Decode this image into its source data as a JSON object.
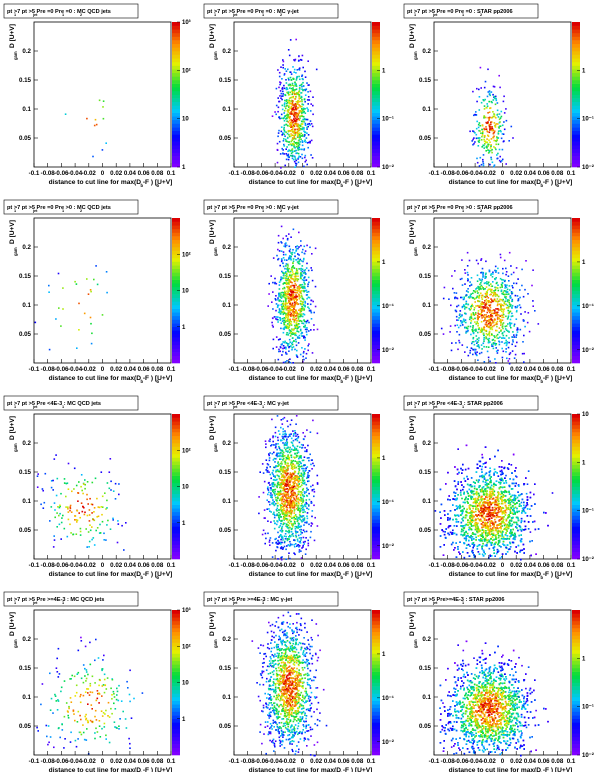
{
  "chart_data": [
    {
      "type": "heatmap",
      "title": "pt >7  pt    >5 Pre =0 Pre =0 : MC QCD jets",
      "title_sub": [
        "1",
        "jet",
        "1",
        "2"
      ],
      "xlabel": "distance to cut line for max(D   -F   ) [U+V]",
      "xlabel_sub": [
        "b",
        "b"
      ],
      "ylabel": "D    [U+V]",
      "ylabel_sub": "gam",
      "xlim": [
        -0.1,
        0.1
      ],
      "ylim": [
        0,
        0.25
      ],
      "xticks": [
        "-0.1",
        "-0.08",
        "-0.06",
        "-0.04",
        "-0.02",
        "0",
        "0.02",
        "0.04",
        "0.06",
        "0.08",
        "0.1"
      ],
      "yticks": [
        "0.05",
        "0.1",
        "0.15",
        "0.2"
      ],
      "zscale": "log",
      "zlim": [
        1,
        1000
      ],
      "zticks": [
        "1",
        "10",
        "10²",
        "10³"
      ],
      "density": 0.05,
      "center": [
        -0.02,
        0.09
      ],
      "spread": [
        0.02,
        0.035
      ],
      "points": 12
    },
    {
      "type": "heatmap",
      "title": "pt >7  pt    >5 Pre =0 Pre =0 : MC γ-jet",
      "title_sub": [
        "1",
        "jet",
        "1",
        "2"
      ],
      "xlabel": "distance to cut line for max(D   -F   ) [U+V]",
      "xlabel_sub": [
        "b",
        "b"
      ],
      "ylabel": "D    [U+V]",
      "ylabel_sub": "gam",
      "xlim": [
        -0.1,
        0.1
      ],
      "ylim": [
        0,
        0.25
      ],
      "xticks": [
        "-0.1",
        "-0.08",
        "-0.06",
        "-0.04",
        "-0.02",
        "0",
        "0.02",
        "0.04",
        "0.06",
        "0.08",
        "0.1"
      ],
      "yticks": [
        "0.05",
        "0.1",
        "0.15",
        "0.2"
      ],
      "zscale": "log",
      "zlim": [
        0.01,
        10
      ],
      "zticks": [
        "10⁻²",
        "10⁻¹",
        "1"
      ],
      "center": [
        -0.013,
        0.09
      ],
      "spread": [
        0.011,
        0.045
      ],
      "points": 700
    },
    {
      "type": "heatmap",
      "title": "pt >7  pt    >5 Pre =0 Pre =0 : STAR pp2006",
      "title_sub": [
        "1",
        "jet",
        "1",
        "2"
      ],
      "xlabel": "distance to cut line for max(D   -F   ) [U+V]",
      "xlabel_sub": [
        "b",
        "b"
      ],
      "ylabel": "D    [U+V]",
      "ylabel_sub": "gam",
      "xlim": [
        -0.1,
        0.1
      ],
      "ylim": [
        0,
        0.25
      ],
      "xticks": [
        "-0.1",
        "-0.08",
        "-0.06",
        "-0.04",
        "-0.02",
        "0",
        "0.02",
        "0.04",
        "0.06",
        "0.08",
        "0.1"
      ],
      "yticks": [
        "0.05",
        "0.1",
        "0.15",
        "0.2"
      ],
      "zscale": "log",
      "zlim": [
        0.01,
        10
      ],
      "zticks": [
        "10⁻²",
        "10⁻¹",
        "1"
      ],
      "center": [
        -0.02,
        0.07
      ],
      "spread": [
        0.012,
        0.035
      ],
      "points": 280
    },
    {
      "type": "heatmap",
      "title": "pt >7  pt    >5 Pre =0 Pre >0 : MC QCD jets",
      "title_sub": [
        "1",
        "jet",
        "1",
        "2"
      ],
      "xlabel": "distance to cut line for max(D   -F   ) [U+V]",
      "xlabel_sub": [
        "b",
        "b"
      ],
      "ylabel": "D    [U+V]",
      "ylabel_sub": "gam",
      "xlim": [
        -0.1,
        0.1
      ],
      "ylim": [
        0,
        0.25
      ],
      "xticks": [
        "-0.1",
        "-0.08",
        "-0.06",
        "-0.04",
        "-0.02",
        "0",
        "0.02",
        "0.04",
        "0.06",
        "0.08",
        "0.1"
      ],
      "yticks": [
        "0.05",
        "0.1",
        "0.15",
        "0.2"
      ],
      "zscale": "log",
      "zlim": [
        0.1,
        1000
      ],
      "zticks": [
        "1",
        "10",
        "10²"
      ],
      "center": [
        -0.03,
        0.1
      ],
      "spread": [
        0.03,
        0.04
      ],
      "points": 30
    },
    {
      "type": "heatmap",
      "title": "pt >7  pt    >5 Pre =0 Pre >0 : MC γ-jet",
      "title_sub": [
        "1",
        "jet",
        "1",
        "2"
      ],
      "xlabel": "distance to cut line for max(D   -F   ) [U+V]",
      "xlabel_sub": [
        "b",
        "b"
      ],
      "ylabel": "D    [U+V]",
      "ylabel_sub": "gam",
      "xlim": [
        -0.1,
        0.1
      ],
      "ylim": [
        0,
        0.25
      ],
      "xticks": [
        "-0.1",
        "-0.08",
        "-0.06",
        "-0.04",
        "-0.02",
        "0",
        "0.02",
        "0.04",
        "0.06",
        "0.08",
        "0.1"
      ],
      "yticks": [
        "0.05",
        "0.1",
        "0.15",
        "0.2"
      ],
      "zscale": "log",
      "zlim": [
        0.005,
        10
      ],
      "zticks": [
        "10⁻²",
        "10⁻¹",
        "1"
      ],
      "center": [
        -0.015,
        0.11
      ],
      "spread": [
        0.013,
        0.05
      ],
      "points": 900
    },
    {
      "type": "heatmap",
      "title": "pt >7  pt    >5 Pre =0 Pre >0 : STAR pp2006",
      "title_sub": [
        "1",
        "jet",
        "1",
        "2"
      ],
      "xlabel": "distance to cut line for max(D   -F   ) [U+V]",
      "xlabel_sub": [
        "b",
        "b"
      ],
      "ylabel": "D    [U+V]",
      "ylabel_sub": "gam",
      "xlim": [
        -0.1,
        0.1
      ],
      "ylim": [
        0,
        0.25
      ],
      "xticks": [
        "-0.1",
        "-0.08",
        "-0.06",
        "-0.04",
        "-0.02",
        "0",
        "0.02",
        "0.04",
        "0.06",
        "0.08",
        "0.1"
      ],
      "yticks": [
        "0.05",
        "0.1",
        "0.15",
        "0.2"
      ],
      "zscale": "log",
      "zlim": [
        0.005,
        10
      ],
      "zticks": [
        "10⁻²",
        "10⁻¹",
        "1"
      ],
      "center": [
        -0.02,
        0.09
      ],
      "spread": [
        0.025,
        0.04
      ],
      "points": 900
    },
    {
      "type": "heatmap",
      "title": "pt >7  pt    >5 Pre <4E-3 : MC QCD jets",
      "title_sub": [
        "1",
        "jet",
        "1"
      ],
      "xlabel": "distance to cut line for max(D   -F   ) [U+V]",
      "xlabel_sub": [
        "b",
        "b"
      ],
      "ylabel": "D    [U+V]",
      "ylabel_sub": "gam",
      "xlim": [
        -0.1,
        0.1
      ],
      "ylim": [
        0,
        0.25
      ],
      "xticks": [
        "-0.1",
        "-0.08",
        "-0.06",
        "-0.04",
        "-0.02",
        "0",
        "0.02",
        "0.04",
        "0.06",
        "0.08",
        "0.1"
      ],
      "yticks": [
        "0.05",
        "0.1",
        "0.15",
        "0.2"
      ],
      "zscale": "log",
      "zlim": [
        0.1,
        1000
      ],
      "zticks": [
        "1",
        "10",
        "10²"
      ],
      "center": [
        -0.03,
        0.09
      ],
      "spread": [
        0.03,
        0.04
      ],
      "points": 180
    },
    {
      "type": "heatmap",
      "title": "pt >7  pt    >5 Pre <4E-3 : MC  γ-jet",
      "title_sub": [
        "1",
        "jet",
        "1"
      ],
      "xlabel": "distance to cut line for max(D   -F   ) [U+V]",
      "xlabel_sub": [
        "b",
        "b"
      ],
      "ylabel": "D    [U+V]",
      "ylabel_sub": "gam",
      "xlim": [
        -0.1,
        0.1
      ],
      "ylim": [
        0,
        0.25
      ],
      "xticks": [
        "-0.1",
        "-0.08",
        "-0.06",
        "-0.04",
        "-0.02",
        "0",
        "0.02",
        "0.04",
        "0.06",
        "0.08",
        "0.1"
      ],
      "yticks": [
        "0.05",
        "0.1",
        "0.15",
        "0.2"
      ],
      "zscale": "log",
      "zlim": [
        0.005,
        10
      ],
      "zticks": [
        "10⁻²",
        "10⁻¹",
        "1"
      ],
      "center": [
        -0.02,
        0.12
      ],
      "spread": [
        0.016,
        0.055
      ],
      "points": 1300
    },
    {
      "type": "heatmap",
      "title": "pt >7  pt    >5 Pre <4E-3 : STAR pp2006",
      "title_sub": [
        "1",
        "jet",
        "1"
      ],
      "xlabel": "distance to cut line for max(D   -F   ) [U+V]",
      "xlabel_sub": [
        "b",
        "b"
      ],
      "ylabel": "D    [U+V]",
      "ylabel_sub": "gam",
      "xlim": [
        -0.1,
        0.1
      ],
      "ylim": [
        0,
        0.25
      ],
      "xticks": [
        "-0.1",
        "-0.08",
        "-0.06",
        "-0.04",
        "-0.02",
        "0",
        "0.02",
        "0.04",
        "0.06",
        "0.08",
        "0.1"
      ],
      "yticks": [
        "0.05",
        "0.1",
        "0.15",
        "0.2"
      ],
      "zscale": "log",
      "zlim": [
        0.01,
        10
      ],
      "zticks": [
        "10⁻²",
        "10⁻¹",
        "1",
        "10"
      ],
      "center": [
        -0.02,
        0.08
      ],
      "spread": [
        0.03,
        0.04
      ],
      "points": 2600
    },
    {
      "type": "heatmap",
      "title": "pt >7  pt    >5 Pre >=4E-3 : MC QCD jets",
      "title_sub": [
        "1",
        "jet",
        "1"
      ],
      "xlabel": "distance to cut line for max(D   -F   ) [U+V]",
      "xlabel_sub": [
        "b",
        "b"
      ],
      "ylabel": "D    [U+V]",
      "ylabel_sub": "gam",
      "xlim": [
        -0.1,
        0.1
      ],
      "ylim": [
        0,
        0.25
      ],
      "xticks": [
        "-0.1",
        "-0.08",
        "-0.06",
        "-0.04",
        "-0.02",
        "0",
        "0.02",
        "0.04",
        "0.06",
        "0.08",
        "0.1"
      ],
      "yticks": [
        "0.05",
        "0.1",
        "0.15",
        "0.2"
      ],
      "zscale": "log",
      "zlim": [
        0.1,
        1000
      ],
      "zticks": [
        "1",
        "10",
        "10²",
        "10³"
      ],
      "center": [
        -0.02,
        0.09
      ],
      "spread": [
        0.035,
        0.045
      ],
      "points": 220
    },
    {
      "type": "heatmap",
      "title": "pt >7  pt    >5 Pre >=4E-3 : MC γ-jet",
      "title_sub": [
        "1",
        "jet",
        "1"
      ],
      "xlabel": "distance to cut line for max(D   -F   ) [U+V]",
      "xlabel_sub": [
        "b",
        "b"
      ],
      "ylabel": "D    [U+V]",
      "ylabel_sub": "gam",
      "xlim": [
        -0.1,
        0.1
      ],
      "ylim": [
        0,
        0.25
      ],
      "xticks": [
        "-0.1",
        "-0.08",
        "-0.06",
        "-0.04",
        "-0.02",
        "0",
        "0.02",
        "0.04",
        "0.06",
        "0.08",
        "0.1"
      ],
      "yticks": [
        "0.05",
        "0.1",
        "0.15",
        "0.2"
      ],
      "zscale": "log",
      "zlim": [
        0.005,
        10
      ],
      "zticks": [
        "10⁻²",
        "10⁻¹",
        "1"
      ],
      "center": [
        -0.02,
        0.12
      ],
      "spread": [
        0.018,
        0.055
      ],
      "points": 1300
    },
    {
      "type": "heatmap",
      "title": "pt >7  pt    >5 Pre>=4E-3 : STAR pp2006",
      "title_sub": [
        "1",
        "jet",
        "1"
      ],
      "xlabel": "distance to cut line for max(D   -F   ) [U+V]",
      "xlabel_sub": [
        "b",
        "b"
      ],
      "ylabel": "D    [U+V]",
      "ylabel_sub": "gam",
      "xlim": [
        -0.1,
        0.1
      ],
      "ylim": [
        0,
        0.25
      ],
      "xticks": [
        "-0.1",
        "-0.08",
        "-0.06",
        "-0.04",
        "-0.02",
        "0",
        "0.02",
        "0.04",
        "0.06",
        "0.08",
        "0.1"
      ],
      "yticks": [
        "0.05",
        "0.1",
        "0.15",
        "0.2"
      ],
      "zscale": "log",
      "zlim": [
        0.01,
        10
      ],
      "zticks": [
        "10⁻²",
        "10⁻¹",
        "1"
      ],
      "center": [
        -0.02,
        0.08
      ],
      "spread": [
        0.03,
        0.04
      ],
      "points": 2600
    }
  ]
}
